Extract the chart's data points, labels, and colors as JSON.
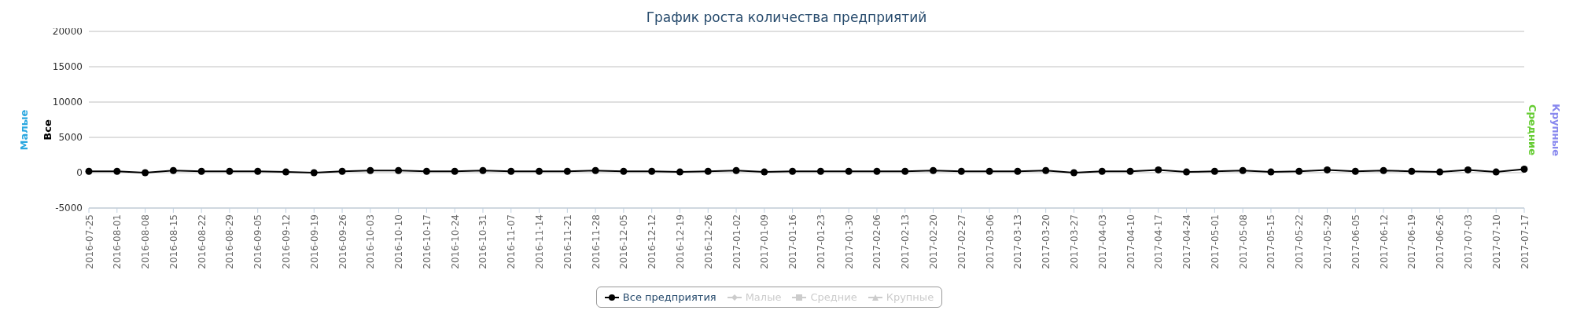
{
  "chart_data": {
    "type": "line",
    "title": "График роста количества предприятий",
    "ylabel": "Все",
    "y2label": "Средние",
    "y3label": "Малые",
    "annotations": [
      "Крупные"
    ],
    "categories": [
      "2016-07-25",
      "2016-08-01",
      "2016-08-08",
      "2016-08-15",
      "2016-08-22",
      "2016-08-29",
      "2016-09-05",
      "2016-09-12",
      "2016-09-19",
      "2016-09-26",
      "2016-10-03",
      "2016-10-10",
      "2016-10-17",
      "2016-10-24",
      "2016-10-31",
      "2016-11-07",
      "2016-11-14",
      "2016-11-21",
      "2016-11-28",
      "2016-12-05",
      "2016-12-12",
      "2016-12-19",
      "2016-12-26",
      "2017-01-02",
      "2017-01-09",
      "2017-01-16",
      "2017-01-23",
      "2017-01-30",
      "2017-02-06",
      "2017-02-13",
      "2017-02-20",
      "2017-02-27",
      "2017-03-06",
      "2017-03-13",
      "2017-03-20",
      "2017-03-27",
      "2017-04-03",
      "2017-04-10",
      "2017-04-17",
      "2017-04-24",
      "2017-05-01",
      "2017-05-08",
      "2017-05-15",
      "2017-05-22",
      "2017-05-29",
      "2017-06-05",
      "2017-06-12",
      "2017-06-19",
      "2017-06-26",
      "2017-07-03",
      "2017-07-10",
      "2017-07-17"
    ],
    "series": [
      {
        "name": "Все предприятия",
        "color": "#000000",
        "marker": "circle",
        "values": [
          200,
          200,
          0,
          300,
          200,
          200,
          200,
          100,
          0,
          200,
          300,
          300,
          200,
          200,
          300,
          200,
          200,
          200,
          300,
          200,
          200,
          100,
          200,
          300,
          100,
          200,
          200,
          200,
          200,
          200,
          300,
          200,
          200,
          200,
          300,
          0,
          200,
          200,
          400,
          100,
          200,
          300,
          100,
          200,
          400,
          200,
          300,
          200,
          100,
          400,
          100,
          500
        ]
      },
      {
        "name": "Малые",
        "color": "#cccccc",
        "marker": "diamond",
        "values": [
          null,
          null,
          null,
          null,
          null,
          null,
          null,
          null,
          null,
          null,
          null,
          null,
          null,
          null,
          null,
          null,
          null,
          null,
          null,
          null,
          null,
          null,
          null,
          null,
          null,
          null,
          null,
          null,
          null,
          null,
          null,
          null,
          null,
          null,
          null,
          null,
          null,
          null,
          null,
          null,
          null,
          null,
          null,
          null,
          null,
          null,
          null,
          null,
          null,
          null,
          null,
          null
        ]
      },
      {
        "name": "Средние",
        "color": "#cccccc",
        "marker": "square",
        "values": [
          null,
          null,
          null,
          null,
          null,
          null,
          null,
          null,
          null,
          null,
          null,
          null,
          null,
          null,
          null,
          null,
          null,
          null,
          null,
          null,
          null,
          null,
          null,
          null,
          null,
          null,
          null,
          null,
          null,
          null,
          null,
          null,
          null,
          null,
          null,
          null,
          null,
          null,
          null,
          null,
          null,
          null,
          null,
          null,
          null,
          null,
          null,
          null,
          null,
          null,
          null,
          null
        ]
      },
      {
        "name": "Крупные",
        "color": "#cccccc",
        "marker": "triangle",
        "values": [
          null,
          null,
          null,
          null,
          null,
          null,
          null,
          null,
          null,
          null,
          null,
          null,
          null,
          null,
          null,
          null,
          null,
          null,
          null,
          null,
          null,
          null,
          null,
          null,
          null,
          null,
          null,
          null,
          null,
          null,
          null,
          null,
          null,
          null,
          null,
          null,
          null,
          null,
          null,
          null,
          null,
          null,
          null,
          null,
          null,
          null,
          null,
          null,
          null,
          null,
          null,
          null
        ]
      }
    ],
    "ylim": [
      -5000,
      20000
    ],
    "yticks": [
      -5000,
      0,
      5000,
      10000,
      15000,
      20000
    ],
    "grid": "y",
    "legend": "bottom"
  }
}
